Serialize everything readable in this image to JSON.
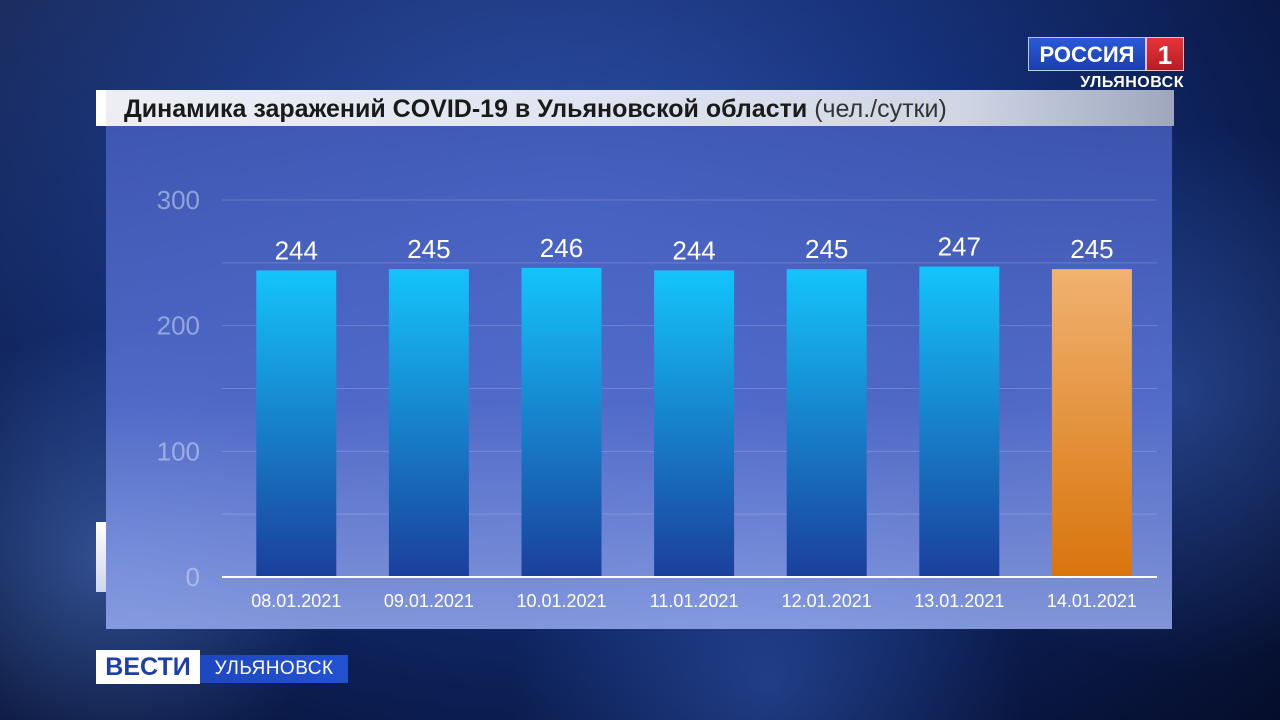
{
  "title": "Динамика заражений COVID-19 в Ульяновской области",
  "title_unit": "(чел./сутки)",
  "channel": {
    "logo_text": "РОССИЯ",
    "logo_number": "1",
    "region": "УЛЬЯНОВСК"
  },
  "program": {
    "name": "ВЕСТИ",
    "region": "УЛЬЯНОВСК"
  },
  "colors": {
    "bar_top": "#14c4fb",
    "bar_bottom": "#1a3f9c",
    "highlight_top": "#f0b270",
    "highlight_bottom": "#d9740c"
  },
  "chart_data": {
    "type": "bar",
    "categories": [
      "08.01.2021",
      "09.01.2021",
      "10.01.2021",
      "11.01.2021",
      "12.01.2021",
      "13.01.2021",
      "14.01.2021"
    ],
    "values": [
      244,
      245,
      246,
      244,
      245,
      247,
      245
    ],
    "data_labels": [
      "244",
      "245",
      "246",
      "244",
      "245",
      "247",
      "245"
    ],
    "ylim": [
      0,
      300
    ],
    "yticks": [
      0,
      100,
      200,
      300
    ],
    "grid": true,
    "highlight_index": 6,
    "title": "Динамика заражений COVID-19 в Ульяновской области",
    "xlabel": "",
    "ylabel": ""
  }
}
